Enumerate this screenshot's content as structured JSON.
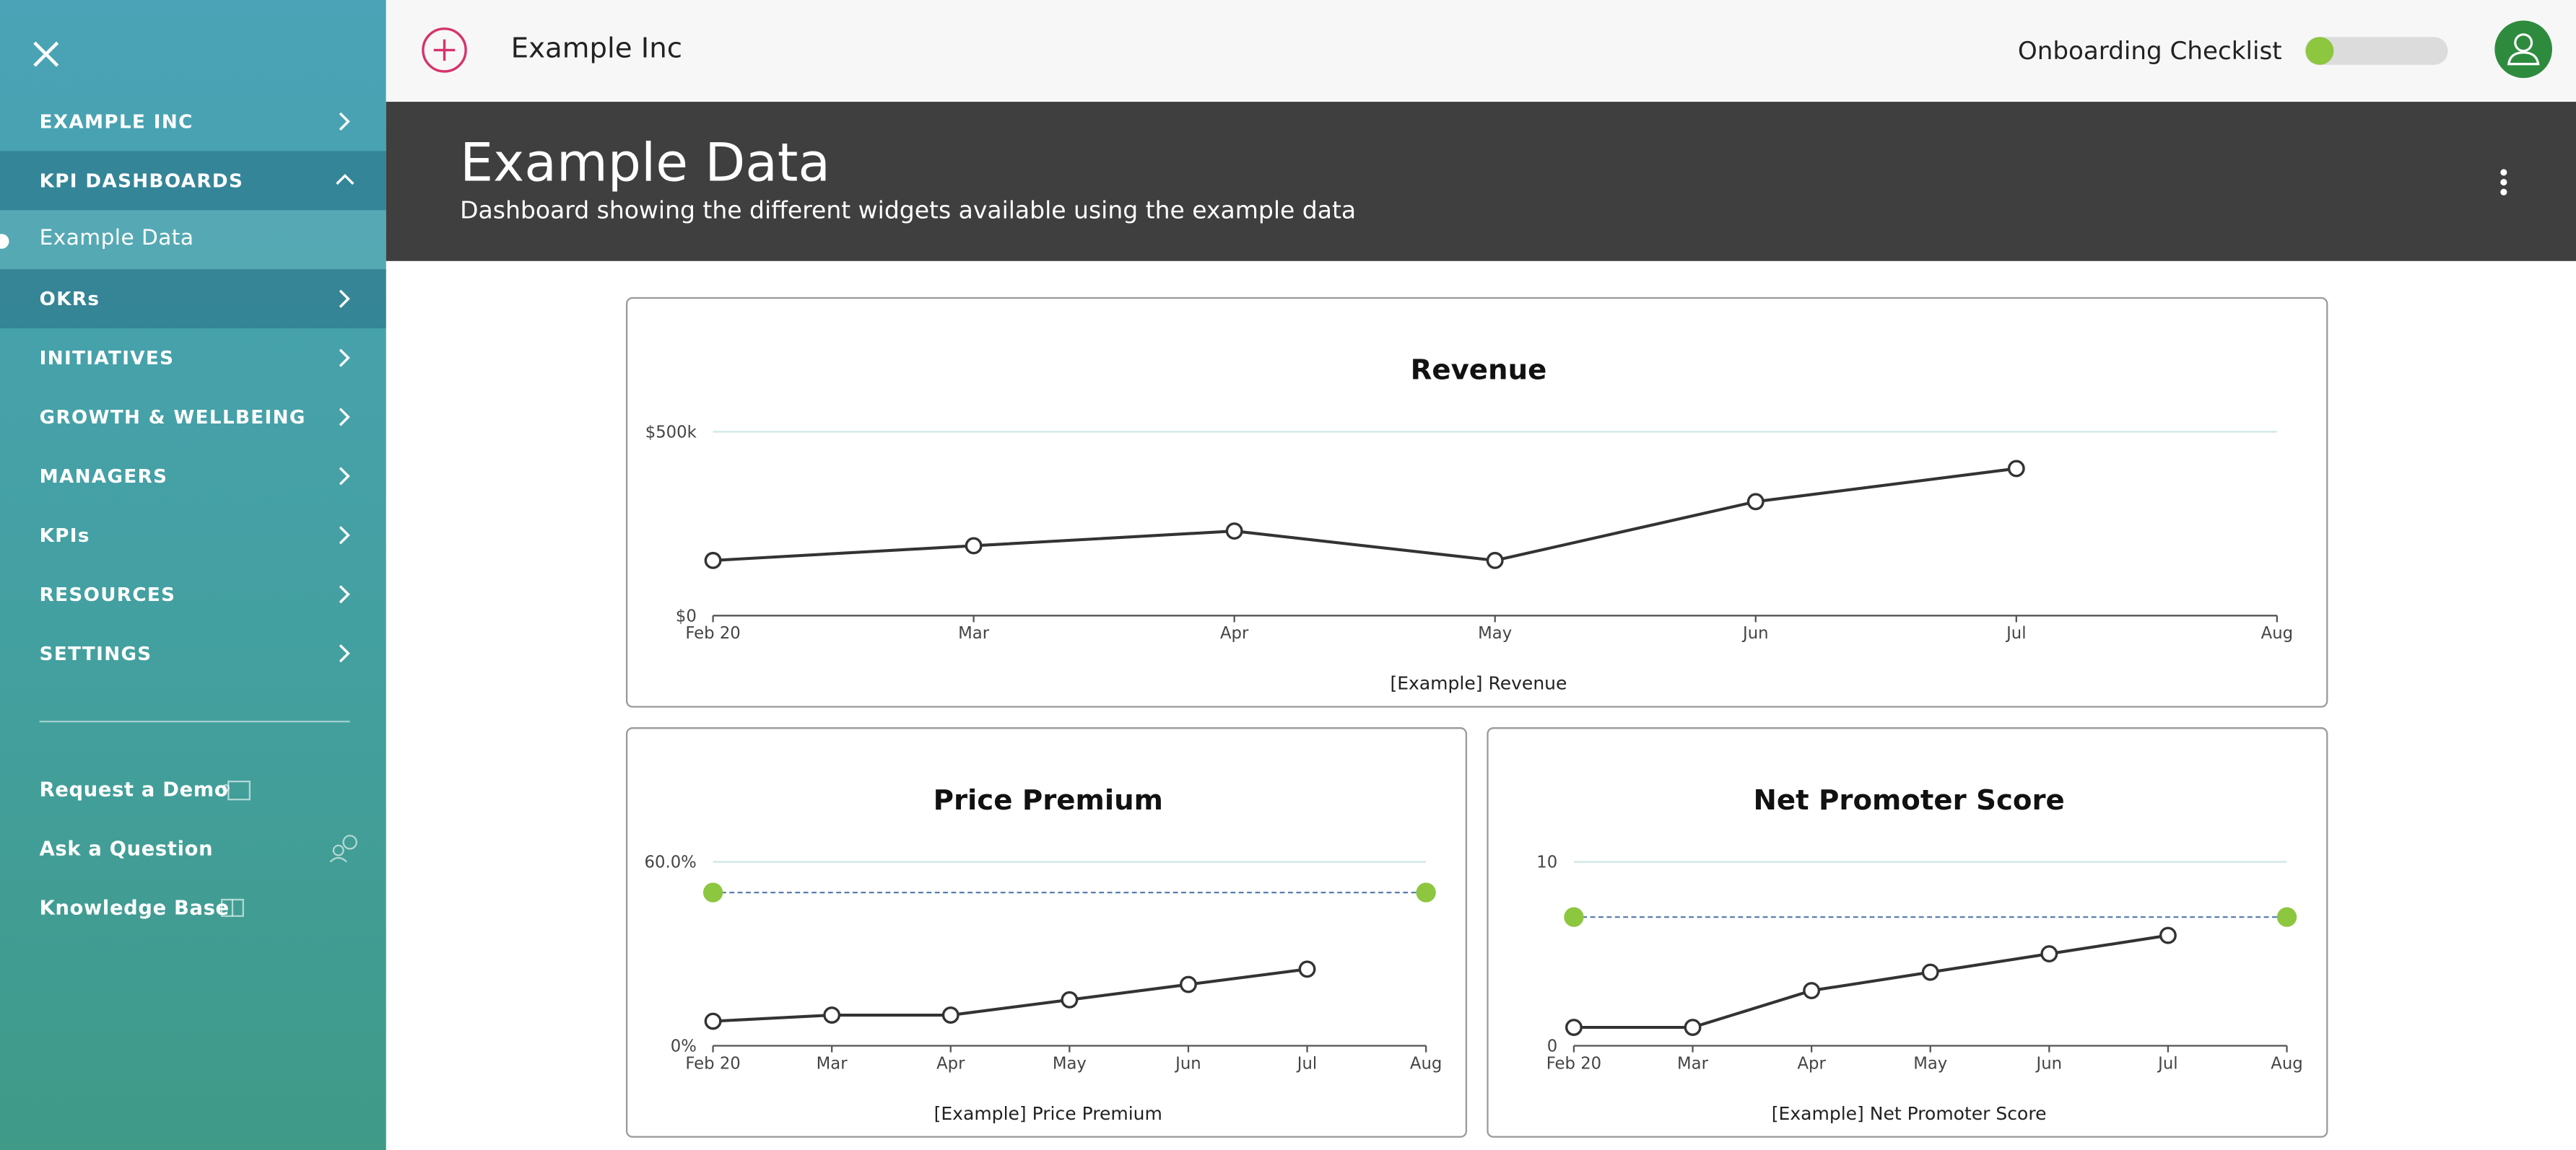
{
  "topbar": {
    "company": "Example Inc",
    "checklist": "Onboarding Checklist"
  },
  "sidebar": {
    "nav": [
      {
        "label": "EXAMPLE INC"
      },
      {
        "label": "KPI DASHBOARDS",
        "children": [
          "Example Data"
        ]
      },
      {
        "label": "OKRs"
      },
      {
        "label": "INITIATIVES"
      },
      {
        "label": "GROWTH & WELLBEING"
      },
      {
        "label": "MANAGERS"
      },
      {
        "label": "KPIs"
      },
      {
        "label": "RESOURCES"
      },
      {
        "label": "SETTINGS"
      }
    ],
    "links": [
      "Request a Demo",
      "Ask a Question",
      "Knowledge Base"
    ]
  },
  "header": {
    "title": "Example Data",
    "subtitle": "Dashboard showing the different widgets available using the example data"
  },
  "widgets": [
    {
      "type": "line",
      "title": "Revenue",
      "x_label": "[Example] Revenue",
      "categories": [
        "Feb 20",
        "Mar",
        "Apr",
        "May",
        "Jun",
        "Jul",
        "Aug"
      ],
      "values": [
        150000,
        190000,
        230000,
        150000,
        310000,
        400000,
        null
      ],
      "color": "#333333",
      "ylim": [
        0,
        500000
      ],
      "yticks": [
        {
          "value": 0,
          "label": "$0"
        },
        {
          "value": 500000,
          "label": "$500k"
        }
      ]
    },
    {
      "type": "line",
      "title": "Price Premium",
      "x_label": "[Example] Price Premium",
      "categories": [
        "Feb 20",
        "Mar",
        "Apr",
        "May",
        "Jun",
        "Jul",
        "Aug"
      ],
      "values": [
        8,
        10,
        10,
        15,
        20,
        25,
        null
      ],
      "color": "#333333",
      "target": 50,
      "target_color": "#8dc63f",
      "ylim": [
        0,
        60
      ],
      "yticks": [
        {
          "value": 0,
          "label": "0%"
        },
        {
          "value": 60,
          "label": "60.0%"
        }
      ]
    },
    {
      "type": "line",
      "title": "Net Promoter Score",
      "x_label": "[Example] Net Promoter Score",
      "categories": [
        "Feb 20",
        "Mar",
        "Apr",
        "May",
        "Jun",
        "Jul",
        "Aug"
      ],
      "values": [
        1,
        1,
        3,
        4,
        5,
        6,
        null
      ],
      "color": "#333333",
      "target": 7,
      "target_color": "#8dc63f",
      "ylim": [
        0,
        10
      ],
      "yticks": [
        0,
        10
      ]
    }
  ]
}
